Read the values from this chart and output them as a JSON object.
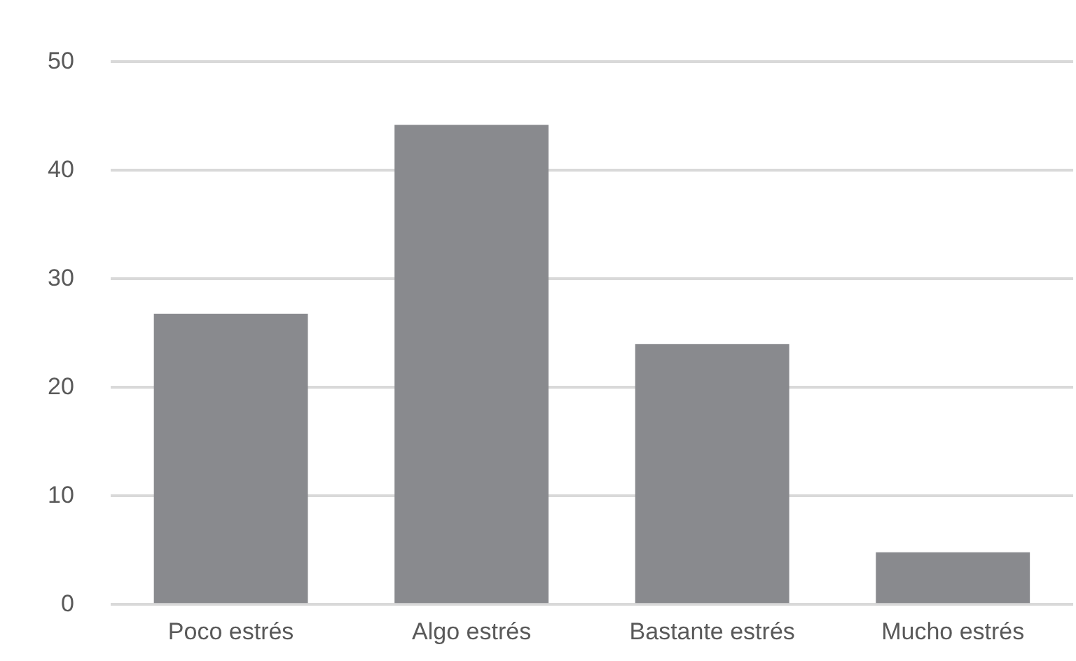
{
  "chart_data": {
    "type": "bar",
    "categories": [
      "Poco estrés",
      "Algo estrés",
      "Bastante estrés",
      "Mucho estrés"
    ],
    "values": [
      26.8,
      44.2,
      24.0,
      4.8
    ],
    "color": "#898a8e",
    "ylim": [
      0,
      50
    ],
    "yticks": [
      0,
      10,
      20,
      30,
      40,
      50
    ],
    "grid": "y",
    "legend": false
  }
}
